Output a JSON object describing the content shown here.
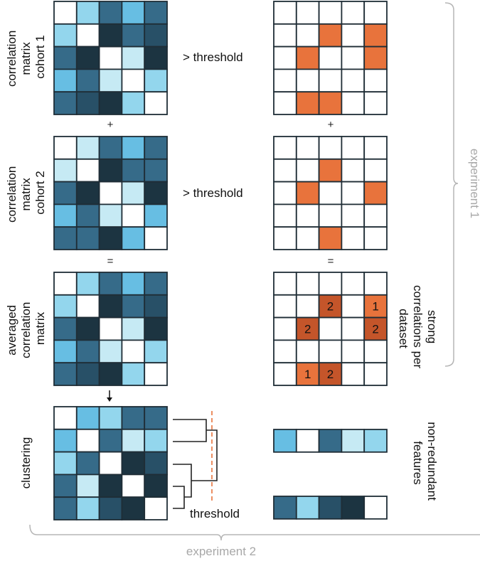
{
  "palette": {
    "W": "#ffffff",
    "L": "#c6eaf4",
    "M": "#93d6ed",
    "S": "#67bee3",
    "T": "#366b89",
    "D": "#285067",
    "K": "#1c3441",
    "O": "#e8733c",
    "R": "#c4552a",
    "grid": "#1f2d36",
    "threshold_line": "#e8733c",
    "bracket": "#b5b5b5"
  },
  "labels": {
    "cohort1": [
      "correlation",
      "matrix",
      "cohort 1"
    ],
    "cohort2": [
      "correlation",
      "matrix",
      "cohort 2"
    ],
    "averaged": [
      "averaged",
      "correlation",
      "matrix"
    ],
    "clustering": [
      "clustering"
    ],
    "strong": [
      "strong",
      "correlations per",
      "dataset"
    ],
    "nonredundant": [
      "non-redundant",
      "features"
    ],
    "gt_threshold": "> threshold",
    "plus": "+",
    "equals": "=",
    "threshold": "threshold",
    "experiment1": "experiment 1",
    "experiment2": "experiment 2"
  },
  "matrices": {
    "cohort1": [
      "WMTST",
      "MWKTD",
      "TKWLK",
      "STLWM",
      "TDKMW"
    ],
    "cohort2": [
      "WLTST",
      "LWKTT",
      "TKWLK",
      "STLWS",
      "TTKSW"
    ],
    "averaged": [
      "WMTST",
      "MWKTD",
      "TKWLK",
      "STLWM",
      "TDKMW"
    ],
    "clustering": [
      "WSMTT",
      "SWTLM",
      "MTWKD",
      "TLKWK",
      "TMDKW"
    ],
    "thresh1": [
      "WWWWW",
      "WWOWO",
      "WOWWO",
      "WWWWW",
      "WOOWW"
    ],
    "thresh2": [
      "WWWWW",
      "WWOWW",
      "WOWWO",
      "WWWWW",
      "WWOWW"
    ],
    "strong": [
      "WWWWW",
      "WWRWO",
      "WRWWR",
      "WWWWW",
      "WORWW"
    ],
    "feature1": [
      "SWTLM"
    ],
    "feature2": [
      "TMDKW"
    ]
  },
  "strong_counts": [
    {
      "row": 1,
      "col": 2,
      "value": "2"
    },
    {
      "row": 1,
      "col": 4,
      "value": "1"
    },
    {
      "row": 2,
      "col": 1,
      "value": "2"
    },
    {
      "row": 2,
      "col": 4,
      "value": "2"
    },
    {
      "row": 4,
      "col": 1,
      "value": "1"
    },
    {
      "row": 4,
      "col": 2,
      "value": "2"
    }
  ]
}
